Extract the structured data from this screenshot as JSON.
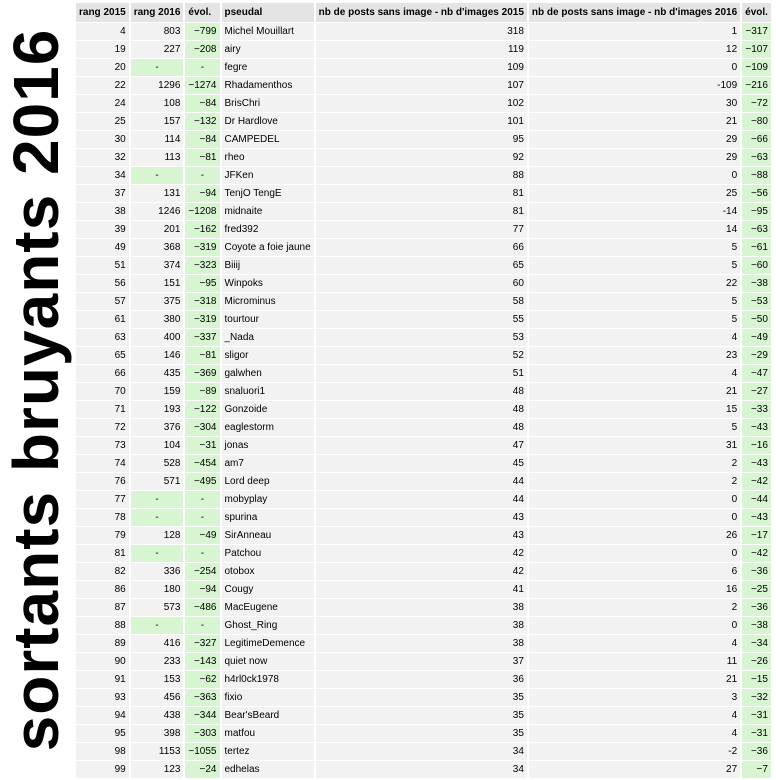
{
  "page": {
    "side_title": "sortants bruyants 2016"
  },
  "table": {
    "headers": [
      "rang 2015",
      "rang 2016",
      "évol.",
      "pseudal",
      "nb de posts sans image - nb d'images 2015",
      "nb de posts sans image - nb d'images 2016",
      "évol."
    ],
    "rows": [
      [
        "4",
        "803",
        "−799",
        "Michel Mouillart",
        "318",
        "1",
        "−317"
      ],
      [
        "19",
        "227",
        "−208",
        "airy",
        "119",
        "12",
        "−107"
      ],
      [
        "20",
        "-",
        "-",
        "fegre",
        "109",
        "0",
        "−109"
      ],
      [
        "22",
        "1296",
        "−1274",
        "Rhadamenthos",
        "107",
        "-109",
        "−216"
      ],
      [
        "24",
        "108",
        "−84",
        "BrisChri",
        "102",
        "30",
        "−72"
      ],
      [
        "25",
        "157",
        "−132",
        "Dr Hardlove",
        "101",
        "21",
        "−80"
      ],
      [
        "30",
        "114",
        "−84",
        "CAMPEDEL",
        "95",
        "29",
        "−66"
      ],
      [
        "32",
        "113",
        "−81",
        "rheo",
        "92",
        "29",
        "−63"
      ],
      [
        "34",
        "-",
        "-",
        "JFKen",
        "88",
        "0",
        "−88"
      ],
      [
        "37",
        "131",
        "−94",
        "TenjO TengE",
        "81",
        "25",
        "−56"
      ],
      [
        "38",
        "1246",
        "−1208",
        "midnaite",
        "81",
        "-14",
        "−95"
      ],
      [
        "39",
        "201",
        "−162",
        "fred392",
        "77",
        "14",
        "−63"
      ],
      [
        "49",
        "368",
        "−319",
        "Coyote a foie jaune",
        "66",
        "5",
        "−61"
      ],
      [
        "51",
        "374",
        "−323",
        "Biiij",
        "65",
        "5",
        "−60"
      ],
      [
        "56",
        "151",
        "−95",
        "Winpoks",
        "60",
        "22",
        "−38"
      ],
      [
        "57",
        "375",
        "−318",
        "Microminus",
        "58",
        "5",
        "−53"
      ],
      [
        "61",
        "380",
        "−319",
        "tourtour",
        "55",
        "5",
        "−50"
      ],
      [
        "63",
        "400",
        "−337",
        "_Nada",
        "53",
        "4",
        "−49"
      ],
      [
        "65",
        "146",
        "−81",
        "sligor",
        "52",
        "23",
        "−29"
      ],
      [
        "66",
        "435",
        "−369",
        "galwhen",
        "51",
        "4",
        "−47"
      ],
      [
        "70",
        "159",
        "−89",
        "snaluori1",
        "48",
        "21",
        "−27"
      ],
      [
        "71",
        "193",
        "−122",
        "Gonzoide",
        "48",
        "15",
        "−33"
      ],
      [
        "72",
        "376",
        "−304",
        "eaglestorm",
        "48",
        "5",
        "−43"
      ],
      [
        "73",
        "104",
        "−31",
        "jonas",
        "47",
        "31",
        "−16"
      ],
      [
        "74",
        "528",
        "−454",
        "am7",
        "45",
        "2",
        "−43"
      ],
      [
        "76",
        "571",
        "−495",
        "Lord deep",
        "44",
        "2",
        "−42"
      ],
      [
        "77",
        "-",
        "-",
        "mobyplay",
        "44",
        "0",
        "−44"
      ],
      [
        "78",
        "-",
        "-",
        "spurina",
        "43",
        "0",
        "−43"
      ],
      [
        "79",
        "128",
        "−49",
        "SirAnneau",
        "43",
        "26",
        "−17"
      ],
      [
        "81",
        "-",
        "-",
        "Patchou",
        "42",
        "0",
        "−42"
      ],
      [
        "82",
        "336",
        "−254",
        "otobox",
        "42",
        "6",
        "−36"
      ],
      [
        "86",
        "180",
        "−94",
        "Cougy",
        "41",
        "16",
        "−25"
      ],
      [
        "87",
        "573",
        "−486",
        "MacEugene",
        "38",
        "2",
        "−36"
      ],
      [
        "88",
        "-",
        "-",
        "Ghost_Ring",
        "38",
        "0",
        "−38"
      ],
      [
        "89",
        "416",
        "−327",
        "LegitimeDemence",
        "38",
        "4",
        "−34"
      ],
      [
        "90",
        "233",
        "−143",
        "quiet now",
        "37",
        "11",
        "−26"
      ],
      [
        "91",
        "153",
        "−62",
        "h4rl0ck1978",
        "36",
        "21",
        "−15"
      ],
      [
        "93",
        "456",
        "−363",
        "fixio",
        "35",
        "3",
        "−32"
      ],
      [
        "94",
        "438",
        "−344",
        "Bear'sBeard",
        "35",
        "4",
        "−31"
      ],
      [
        "95",
        "398",
        "−303",
        "matfou",
        "35",
        "4",
        "−31"
      ],
      [
        "98",
        "1153",
        "−1055",
        "tertez",
        "34",
        "-2",
        "−36"
      ],
      [
        "99",
        "123",
        "−24",
        "edhelas",
        "34",
        "27",
        "−7"
      ]
    ]
  },
  "colors": {
    "evol_bg": "#d6f5d0",
    "cell_bg": "#f2f2f2",
    "header_bg": "#e4e4e4"
  }
}
